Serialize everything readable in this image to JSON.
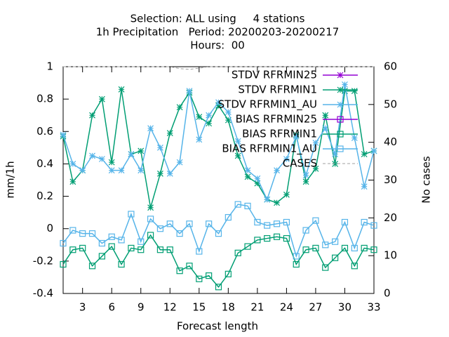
{
  "chart_data": {
    "type": "line",
    "title": [
      "Selection: ALL using     4 stations",
      "1h Precipitation   Period: 20200203-20200217",
      "Hours:  00"
    ],
    "xlabel": "Forecast length",
    "ylabel": "mm/1h",
    "y2label": "No cases",
    "x": [
      1,
      2,
      3,
      4,
      5,
      6,
      7,
      8,
      9,
      10,
      11,
      12,
      13,
      14,
      15,
      16,
      17,
      18,
      19,
      20,
      21,
      22,
      23,
      24,
      25,
      26,
      27,
      28,
      29,
      30,
      31,
      32,
      33
    ],
    "xlim": [
      1,
      33
    ],
    "xticks": [
      3,
      6,
      9,
      12,
      15,
      18,
      21,
      24,
      27,
      30,
      33
    ],
    "ylim": [
      -0.4,
      1
    ],
    "yticks": [
      -0.4,
      -0.2,
      0,
      0.2,
      0.4,
      0.6,
      0.8,
      1
    ],
    "y2lim": [
      0,
      60
    ],
    "y2ticks": [
      0,
      10,
      20,
      30,
      40,
      50,
      60
    ],
    "legend": "top-right",
    "series": [
      {
        "name": "STDV RFRMIN25",
        "color": "#9400d3",
        "marker": "star",
        "values": [
          null,
          null,
          null,
          null,
          null,
          null,
          null,
          null,
          null,
          null,
          null,
          null,
          null,
          null,
          null,
          null,
          null,
          null,
          null,
          null,
          null,
          null,
          null,
          null,
          null,
          null,
          null,
          null,
          null,
          null,
          null,
          null,
          null
        ]
      },
      {
        "name": "STDV RFRMIN1",
        "color": "#009e73",
        "marker": "star",
        "values": [
          0.57,
          0.29,
          0.36,
          0.7,
          0.8,
          0.41,
          0.86,
          0.46,
          0.48,
          0.13,
          0.34,
          0.59,
          0.75,
          0.84,
          0.69,
          0.65,
          0.76,
          0.67,
          0.45,
          0.32,
          0.28,
          0.18,
          0.16,
          0.21,
          0.58,
          0.29,
          0.37,
          0.7,
          0.4,
          0.85,
          0.85,
          0.46,
          0.48
        ]
      },
      {
        "name": "STDV RFRMIN1_AU",
        "color": "#56b4e9",
        "marker": "star",
        "values": [
          0.58,
          0.4,
          0.36,
          0.45,
          0.43,
          0.36,
          0.36,
          0.46,
          0.36,
          0.62,
          0.5,
          0.34,
          0.41,
          0.85,
          0.55,
          0.7,
          0.78,
          0.72,
          0.54,
          0.36,
          0.31,
          0.18,
          0.36,
          0.43,
          0.57,
          0.33,
          0.53,
          0.62,
          0.46,
          0.89,
          0.56,
          0.26,
          0.48
        ]
      },
      {
        "name": "BIAS RFRMIN25",
        "color": "#9400d3",
        "marker": "square",
        "values": [
          null,
          null,
          null,
          null,
          null,
          null,
          null,
          null,
          null,
          null,
          null,
          null,
          null,
          null,
          null,
          null,
          null,
          null,
          null,
          null,
          null,
          null,
          null,
          null,
          null,
          null,
          null,
          null,
          null,
          null,
          null,
          null,
          null
        ]
      },
      {
        "name": "BIAS RFRMIN1",
        "color": "#009e73",
        "marker": "square",
        "values": [
          -0.22,
          -0.13,
          -0.12,
          -0.23,
          -0.17,
          -0.11,
          -0.22,
          -0.12,
          -0.13,
          -0.04,
          -0.13,
          -0.13,
          -0.26,
          -0.23,
          -0.31,
          -0.29,
          -0.36,
          -0.28,
          -0.15,
          -0.11,
          -0.07,
          -0.06,
          -0.05,
          -0.06,
          -0.22,
          -0.13,
          -0.12,
          -0.24,
          -0.18,
          -0.12,
          -0.23,
          -0.12,
          -0.13
        ]
      },
      {
        "name": "BIAS RFRMIN1_AU",
        "color": "#56b4e9",
        "marker": "square",
        "values": [
          -0.09,
          -0.01,
          -0.03,
          -0.03,
          -0.09,
          -0.05,
          -0.07,
          0.09,
          -0.08,
          0.06,
          0.0,
          0.03,
          -0.03,
          0.03,
          -0.14,
          0.03,
          -0.03,
          0.07,
          0.15,
          0.14,
          0.04,
          0.02,
          0.03,
          0.04,
          -0.17,
          -0.01,
          0.05,
          -0.1,
          -0.08,
          0.04,
          -0.12,
          0.04,
          0.02
        ]
      },
      {
        "name": "CASES",
        "color": "#a0a0a0",
        "marker": "dash",
        "axis": "y2",
        "values": [
          60,
          60,
          60,
          60,
          60,
          60,
          60,
          60,
          60,
          60,
          60,
          60,
          59.5,
          59.3,
          59.6,
          60,
          60,
          60,
          60,
          60,
          60,
          60,
          60,
          60,
          60,
          60,
          60,
          60,
          60,
          60,
          60,
          60,
          60
        ]
      }
    ]
  }
}
